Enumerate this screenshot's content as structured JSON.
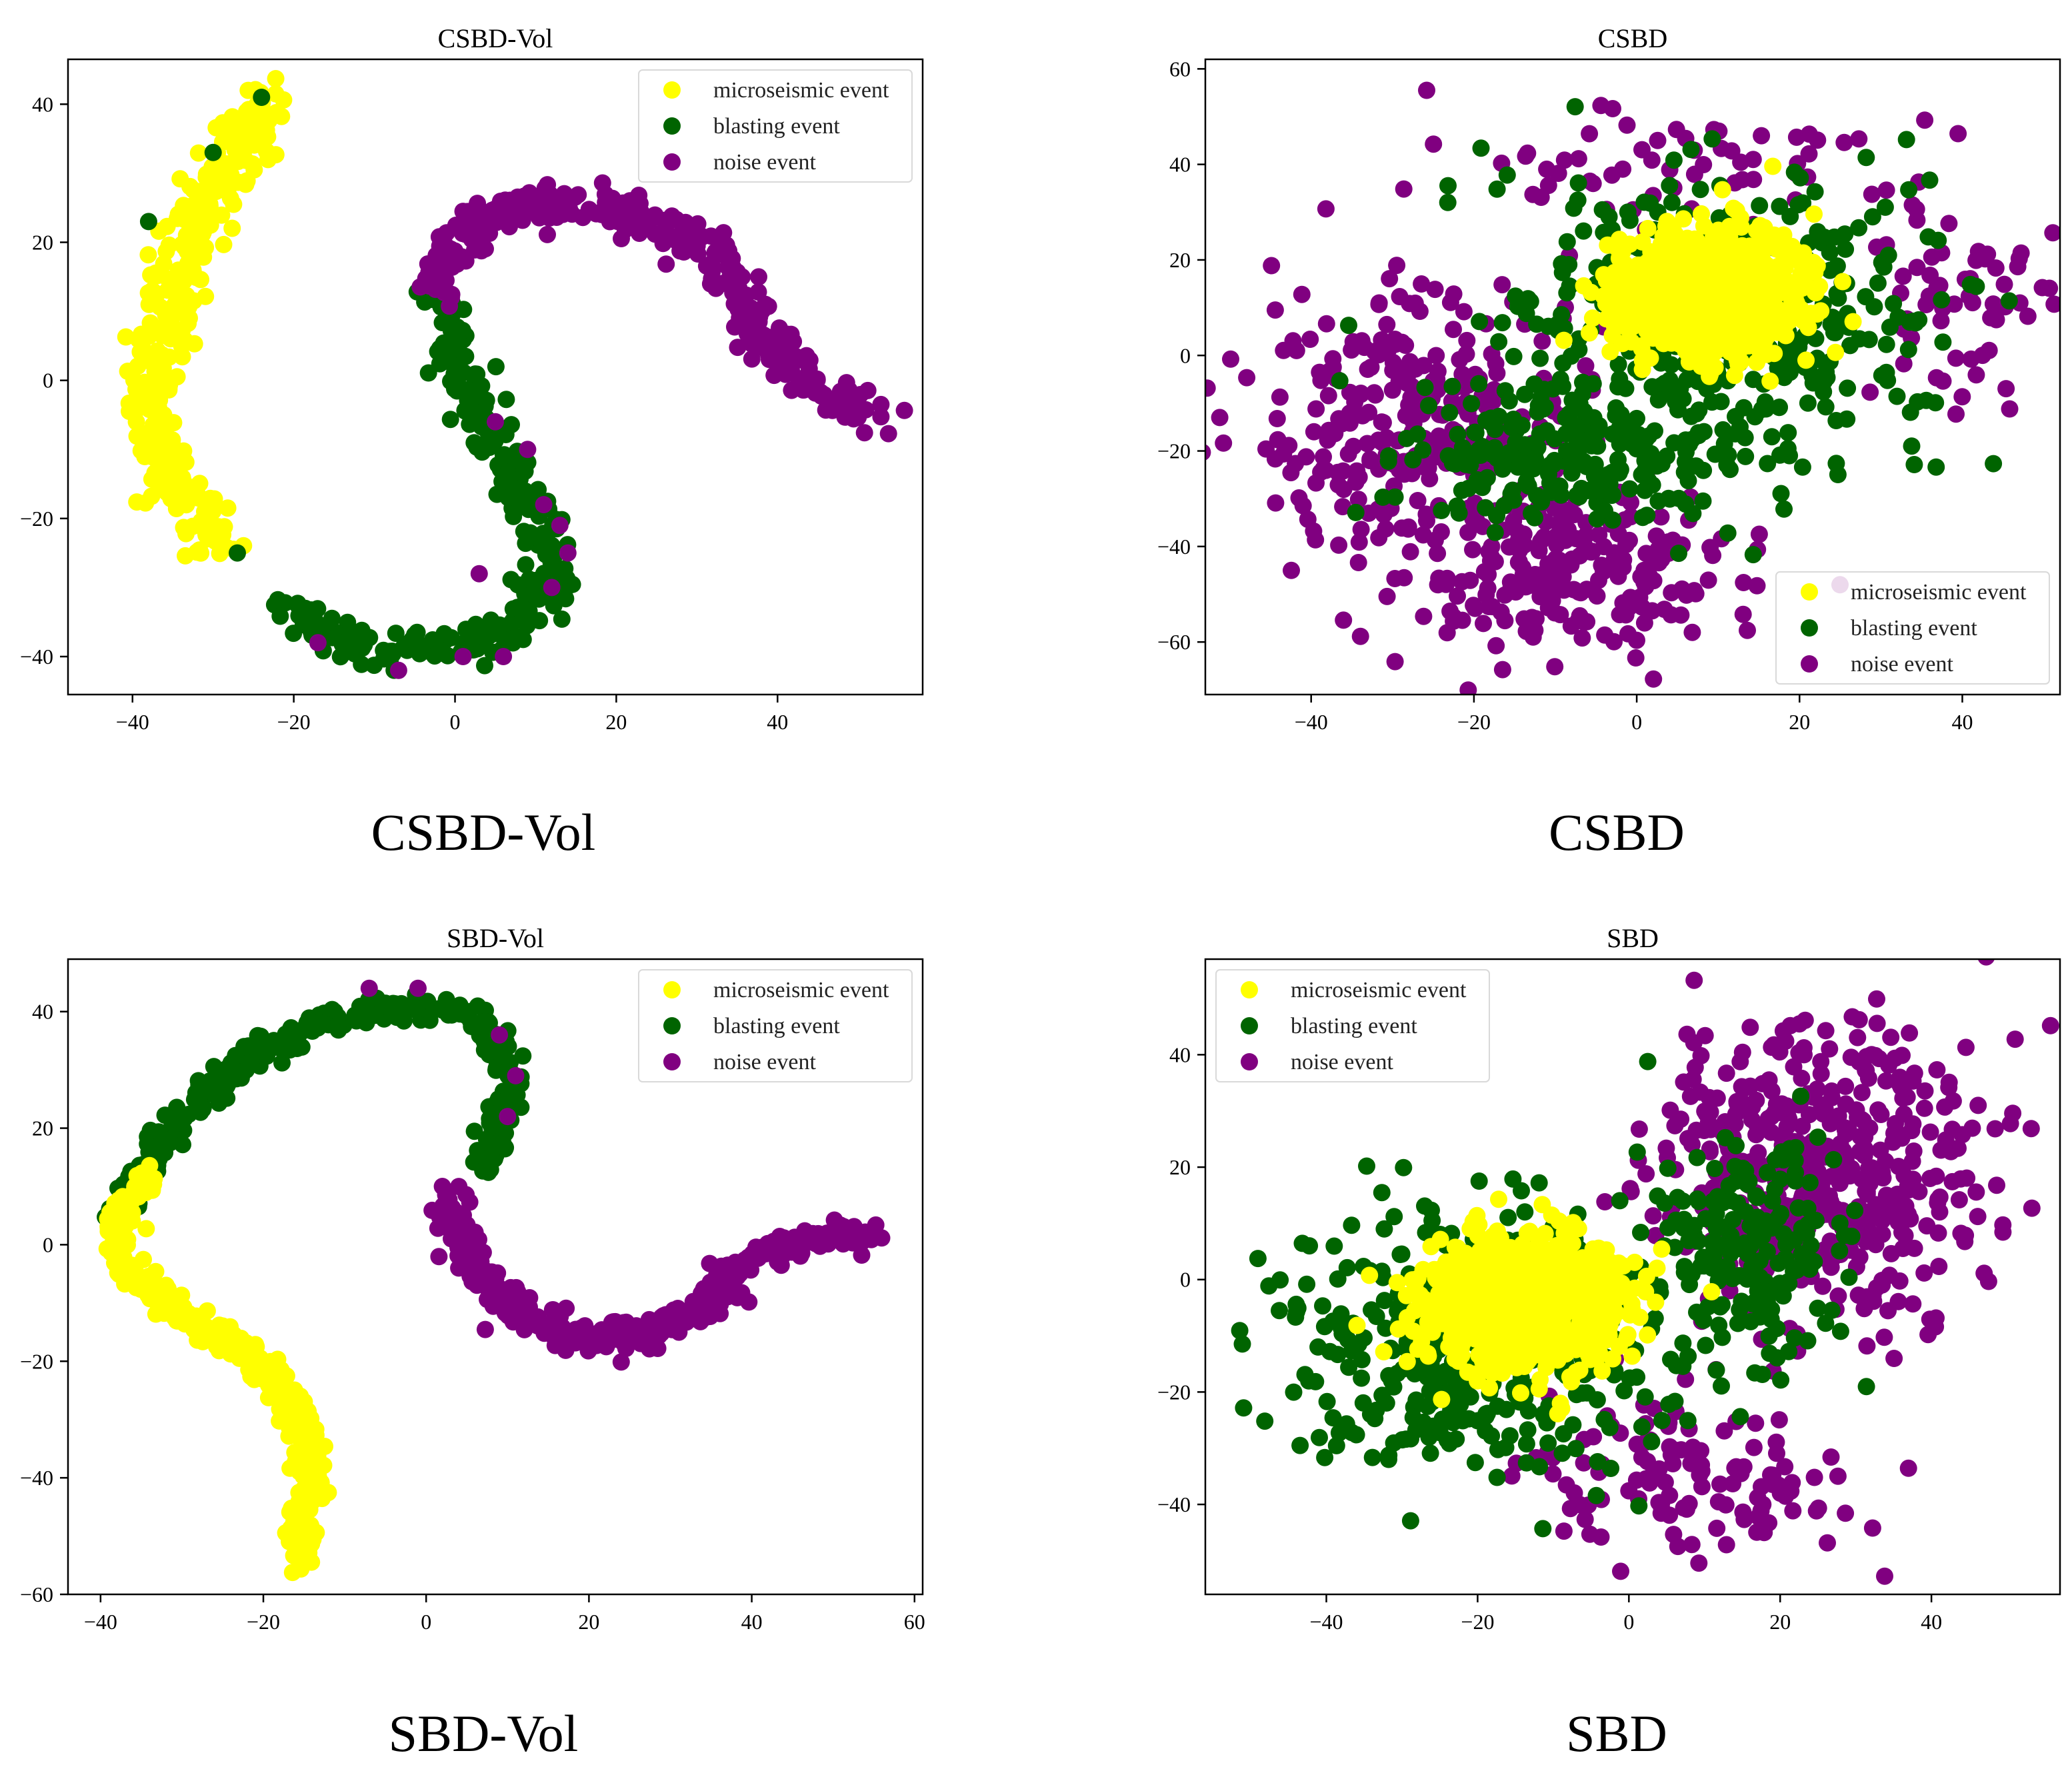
{
  "figure": {
    "captions": [
      "CSBD-Vol",
      "CSBD",
      "SBD-Vol",
      "SBD"
    ]
  },
  "colors": {
    "microseismic": "#ffff00",
    "blasting": "#006400",
    "noise": "#800080",
    "axis": "#000000",
    "legend_border": "#d9d9d9"
  },
  "chart_data": [
    {
      "type": "scatter",
      "title": "CSBD-Vol",
      "xlabel": "",
      "ylabel": "",
      "xlim": [
        -48,
        58
      ],
      "ylim": [
        -45.5,
        46.5
      ],
      "xticks": [
        -40,
        -20,
        0,
        20,
        40
      ],
      "yticks": [
        -40,
        -20,
        0,
        20,
        40
      ],
      "xtick_labels": [
        "−40",
        "−20",
        "0",
        "20",
        "40"
      ],
      "ytick_labels": [
        "−40",
        "−20",
        "0",
        "20",
        "40"
      ],
      "grid": false,
      "legend_position": "top-right",
      "legend": [
        "microseismic event",
        "blasting event",
        "noise event"
      ],
      "series": [
        {
          "name": "microseismic event",
          "color_key": "microseismic",
          "spread": 3.2,
          "count": 360,
          "path": [
            [
              -23,
              41
            ],
            [
              -25,
              37
            ],
            [
              -28,
              32
            ],
            [
              -31,
              25
            ],
            [
              -33,
              18
            ],
            [
              -35,
              10
            ],
            [
              -37,
              3
            ],
            [
              -38,
              -5
            ],
            [
              -36,
              -12
            ],
            [
              -33,
              -18
            ],
            [
              -29,
              -23
            ]
          ]
        },
        {
          "name": "blasting event",
          "color_key": "blasting",
          "spread": 2.6,
          "count": 340,
          "path": [
            [
              -2,
              14
            ],
            [
              -1,
              8
            ],
            [
              1,
              2
            ],
            [
              3,
              -4
            ],
            [
              5,
              -10
            ],
            [
              8,
              -16
            ],
            [
              11,
              -22
            ],
            [
              12,
              -28
            ],
            [
              10,
              -33
            ],
            [
              6,
              -37
            ],
            [
              1,
              -39
            ],
            [
              -4,
              -39
            ],
            [
              -9,
              -39
            ],
            [
              -14,
              -37
            ],
            [
              -18,
              -35
            ],
            [
              -22,
              -31
            ]
          ],
          "extra": [
            [
              -38,
              23
            ],
            [
              -24,
              41
            ],
            [
              -27,
              -25
            ],
            [
              -30,
              33
            ]
          ]
        },
        {
          "name": "noise event",
          "color_key": "noise",
          "spread": 2.8,
          "count": 330,
          "path": [
            [
              -2,
              12
            ],
            [
              0,
              19
            ],
            [
              3,
              23
            ],
            [
              8,
              25
            ],
            [
              14,
              26
            ],
            [
              20,
              24
            ],
            [
              26,
              22
            ],
            [
              32,
              19
            ],
            [
              36,
              12
            ],
            [
              39,
              5
            ],
            [
              43,
              0
            ],
            [
              48,
              -3
            ],
            [
              52,
              -5
            ]
          ],
          "extra": [
            [
              5,
              -6
            ],
            [
              9,
              -10
            ],
            [
              11,
              -18
            ],
            [
              14,
              -25
            ],
            [
              12,
              -30
            ],
            [
              6,
              -40
            ],
            [
              1,
              -40
            ],
            [
              -7,
              -42
            ],
            [
              -17,
              -38
            ],
            [
              3,
              -28
            ],
            [
              13,
              -21
            ]
          ]
        }
      ]
    },
    {
      "type": "scatter",
      "title": "CSBD",
      "xlabel": "",
      "ylabel": "",
      "xlim": [
        -53,
        52
      ],
      "ylim": [
        -71,
        62
      ],
      "xticks": [
        -40,
        -20,
        0,
        20,
        40
      ],
      "yticks": [
        -60,
        -40,
        -20,
        0,
        20,
        40,
        60
      ],
      "xtick_labels": [
        "−40",
        "−20",
        "0",
        "20",
        "40"
      ],
      "ytick_labels": [
        "−60",
        "−40",
        "−20",
        "0",
        "20",
        "40",
        "60"
      ],
      "grid": false,
      "legend_position": "bottom-right",
      "legend": [
        "microseismic event",
        "blasting event",
        "noise event"
      ],
      "series": [
        {
          "name": "noise event",
          "color_key": "noise",
          "count": 620,
          "clusters": [
            [
              -28,
              -12,
              13,
              18,
              0.45
            ],
            [
              -8,
              -45,
              14,
              12,
              0.35
            ],
            [
              5,
              40,
              20,
              10,
              0.1
            ],
            [
              40,
              10,
              8,
              15,
              0.1
            ]
          ]
        },
        {
          "name": "blasting event",
          "color_key": "blasting",
          "count": 620,
          "clusters": [
            [
              10,
              5,
              18,
              22,
              0.7
            ],
            [
              -10,
              -22,
              12,
              10,
              0.3
            ]
          ]
        },
        {
          "name": "microseismic event",
          "color_key": "microseismic",
          "count": 750,
          "clusters": [
            [
              9,
              13,
              8,
              8.5,
              1.0
            ]
          ]
        }
      ]
    },
    {
      "type": "scatter",
      "title": "SBD-Vol",
      "xlabel": "",
      "ylabel": "",
      "xlim": [
        -44,
        61
      ],
      "ylim": [
        -60,
        49
      ],
      "xticks": [
        -40,
        -20,
        0,
        20,
        40,
        60
      ],
      "yticks": [
        -60,
        -40,
        -20,
        0,
        20,
        40
      ],
      "xtick_labels": [
        "−40",
        "−20",
        "0",
        "20",
        "40",
        "60"
      ],
      "ytick_labels": [
        "−60",
        "−40",
        "−20",
        "0",
        "20",
        "40"
      ],
      "grid": false,
      "legend_position": "top-right",
      "legend": [
        "microseismic event",
        "blasting event",
        "noise event"
      ],
      "series": [
        {
          "name": "blasting event",
          "color_key": "blasting",
          "spread": 2.2,
          "count": 340,
          "path": [
            [
              -39,
              3
            ],
            [
              -35,
              12
            ],
            [
              -31,
              20
            ],
            [
              -26,
              27
            ],
            [
              -21,
              33
            ],
            [
              -15,
              37
            ],
            [
              -9,
              40
            ],
            [
              -3,
              41
            ],
            [
              3,
              40
            ],
            [
              8,
              36
            ],
            [
              10,
              28
            ],
            [
              9,
              20
            ],
            [
              7,
              12
            ]
          ]
        },
        {
          "name": "noise event",
          "color_key": "noise",
          "spread": 2.4,
          "count": 360,
          "path": [
            [
              3,
              8
            ],
            [
              4,
              1
            ],
            [
              7,
              -6
            ],
            [
              12,
              -12
            ],
            [
              18,
              -15
            ],
            [
              24,
              -16
            ],
            [
              30,
              -14
            ],
            [
              35,
              -10
            ],
            [
              38,
              -4
            ],
            [
              42,
              -1
            ],
            [
              47,
              0
            ],
            [
              52,
              2
            ],
            [
              55,
              1
            ]
          ],
          "extra": [
            [
              -7,
              44
            ],
            [
              -1,
              44
            ],
            [
              9,
              36
            ],
            [
              11,
              29
            ],
            [
              10,
              22
            ],
            [
              2,
              10
            ],
            [
              4,
              -4
            ]
          ]
        },
        {
          "name": "microseismic event",
          "color_key": "microseismic",
          "spread": 2.0,
          "count": 360,
          "path": [
            [
              -34,
              12
            ],
            [
              -37,
              6
            ],
            [
              -38,
              0
            ],
            [
              -36,
              -5
            ],
            [
              -32,
              -10
            ],
            [
              -27,
              -14
            ],
            [
              -22,
              -18
            ],
            [
              -18,
              -24
            ],
            [
              -15,
              -32
            ],
            [
              -14,
              -40
            ],
            [
              -15,
              -47
            ],
            [
              -15,
              -54
            ]
          ]
        }
      ]
    },
    {
      "type": "scatter",
      "title": "SBD",
      "xlabel": "",
      "ylabel": "",
      "xlim": [
        -56,
        57
      ],
      "ylim": [
        -56,
        57
      ],
      "xticks": [
        -40,
        -20,
        0,
        20,
        40
      ],
      "yticks": [
        -40,
        -20,
        0,
        20,
        40
      ],
      "xtick_labels": [
        "−40",
        "−20",
        "0",
        "20",
        "40"
      ],
      "ytick_labels": [
        "−40",
        "−20",
        "0",
        "20",
        "40"
      ],
      "grid": false,
      "legend_position": "top-left",
      "legend": [
        "microseismic event",
        "blasting event",
        "noise event"
      ],
      "series": [
        {
          "name": "noise event",
          "color_key": "noise",
          "count": 620,
          "clusters": [
            [
              25,
              20,
              14,
              18,
              0.8
            ],
            [
              8,
              -35,
              14,
              10,
              0.2
            ]
          ]
        },
        {
          "name": "blasting event",
          "color_key": "blasting",
          "count": 620,
          "clusters": [
            [
              -20,
              -10,
              16,
              16,
              0.7
            ],
            [
              15,
              5,
              8,
              15,
              0.3
            ]
          ]
        },
        {
          "name": "microseismic event",
          "color_key": "microseismic",
          "count": 750,
          "clusters": [
            [
              -14,
              -4,
              9.5,
              8,
              1.0
            ]
          ]
        }
      ]
    }
  ]
}
